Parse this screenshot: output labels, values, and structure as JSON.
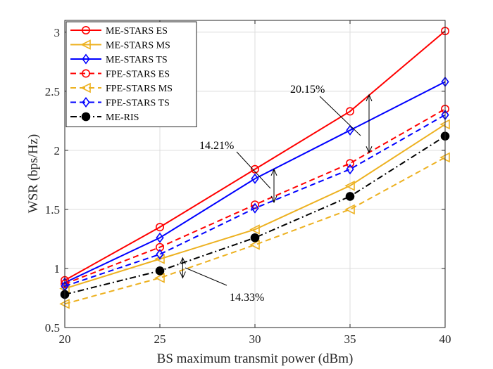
{
  "chart_data": {
    "type": "line",
    "title": "",
    "xlabel": "BS maximum transmit power (dBm)",
    "ylabel": "WSR (bps/Hz)",
    "x": [
      20,
      25,
      30,
      35,
      40
    ],
    "xlim": [
      20,
      40
    ],
    "ylim": [
      0.5,
      3.1
    ],
    "xticks": [
      20,
      25,
      30,
      35,
      40
    ],
    "yticks": [
      0.5,
      1,
      1.5,
      2,
      2.5,
      3
    ],
    "grid": true,
    "legend_position": "top-left",
    "series": [
      {
        "name": "ME-STARS ES",
        "color": "#ff0000",
        "dash": "solid",
        "marker": "circle",
        "values": [
          0.9,
          1.35,
          1.84,
          2.33,
          3.01
        ]
      },
      {
        "name": "ME-STARS MS",
        "color": "#edb120",
        "dash": "solid",
        "marker": "triangle-left",
        "values": [
          0.83,
          1.08,
          1.33,
          1.7,
          2.22
        ]
      },
      {
        "name": "ME-STARS TS",
        "color": "#0000ff",
        "dash": "solid",
        "marker": "diamond",
        "values": [
          0.88,
          1.26,
          1.76,
          2.17,
          2.58
        ]
      },
      {
        "name": "FPE-STARS ES",
        "color": "#ff0000",
        "dash": "dashed",
        "marker": "circle",
        "values": [
          0.87,
          1.18,
          1.54,
          1.89,
          2.35
        ]
      },
      {
        "name": "FPE-STARS MS",
        "color": "#edb120",
        "dash": "dashed",
        "marker": "triangle-left",
        "values": [
          0.7,
          0.92,
          1.2,
          1.5,
          1.94
        ]
      },
      {
        "name": "FPE-STARS TS",
        "color": "#0000ff",
        "dash": "dashed",
        "marker": "diamond",
        "values": [
          0.85,
          1.12,
          1.51,
          1.84,
          2.3
        ]
      },
      {
        "name": "ME-RIS",
        "color": "#000000",
        "dash": "dashdot",
        "marker": "filled-circle",
        "values": [
          0.78,
          0.98,
          1.26,
          1.61,
          2.12
        ]
      }
    ],
    "annotations": [
      {
        "text": "20.15%",
        "arrow_x": 36.0,
        "arrow_y_top": 2.47,
        "arrow_y_bottom": 1.98
      },
      {
        "text": "14.21%",
        "arrow_x": 31.0,
        "arrow_y_top": 1.84,
        "arrow_y_bottom": 1.56
      },
      {
        "text": "14.33%",
        "arrow_x": 26.2,
        "arrow_y_top": 1.09,
        "arrow_y_bottom": 0.92
      }
    ]
  }
}
